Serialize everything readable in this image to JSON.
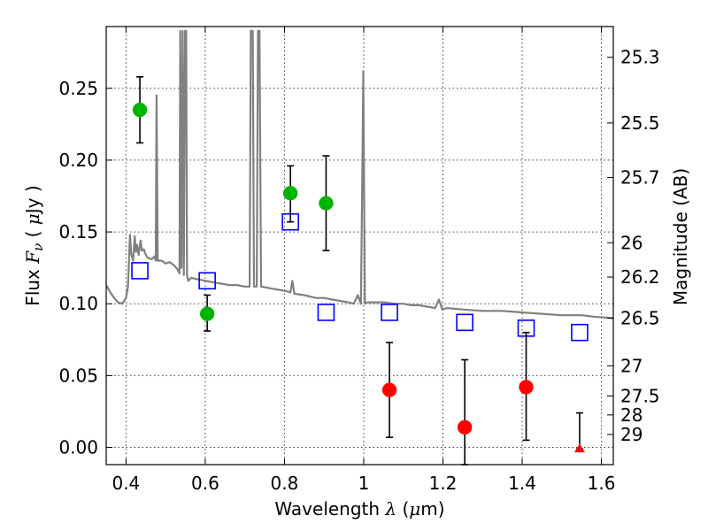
{
  "chart_data": {
    "type": "scatter",
    "title": "",
    "xlabel": {
      "prefix": "Wavelength  ",
      "symbol": "λ",
      "unit_open": " (",
      "unit_mu": "μ",
      "unit_rest": "m)"
    },
    "ylabel": {
      "prefix": "Flux  ",
      "symbol": "F",
      "subscript": "ν",
      "unit_open": "  ( ",
      "unit_mu": "μ",
      "unit_rest": "Jy )"
    },
    "ylabel_right": "Magnitude (AB)",
    "xlim": [
      0.35,
      1.63
    ],
    "ylim": [
      -0.012,
      0.293
    ],
    "grid": true,
    "x_ticks": [
      {
        "value": 0.4,
        "label": "0.4"
      },
      {
        "value": 0.6,
        "label": "0.6"
      },
      {
        "value": 0.8,
        "label": "0.8"
      },
      {
        "value": 1.0,
        "label": "1"
      },
      {
        "value": 1.2,
        "label": "1.2"
      },
      {
        "value": 1.4,
        "label": "1.4"
      },
      {
        "value": 1.6,
        "label": "1.6"
      }
    ],
    "y_ticks": [
      {
        "value": 0.0,
        "label": "0.00"
      },
      {
        "value": 0.05,
        "label": "0.05"
      },
      {
        "value": 0.1,
        "label": "0.10"
      },
      {
        "value": 0.15,
        "label": "0.15"
      },
      {
        "value": 0.2,
        "label": "0.20"
      },
      {
        "value": 0.25,
        "label": "0.25"
      }
    ],
    "right_ticks": [
      {
        "label": "25.3",
        "flux": 0.2716
      },
      {
        "label": "25.5",
        "flux": 0.2259
      },
      {
        "label": "25.7",
        "flux": 0.1879
      },
      {
        "label": "26",
        "flux": 0.1425
      },
      {
        "label": "26.2",
        "flux": 0.1186
      },
      {
        "label": "26.5",
        "flux": 0.09
      },
      {
        "label": "27",
        "flux": 0.0568
      },
      {
        "label": "27.5",
        "flux": 0.0358
      },
      {
        "label": "28",
        "flux": 0.0226
      },
      {
        "label": "29",
        "flux": 0.009
      }
    ],
    "template_spectrum": {
      "color": "#808080",
      "points": [
        [
          0.35,
          0.113
        ],
        [
          0.36,
          0.108
        ],
        [
          0.37,
          0.104
        ],
        [
          0.38,
          0.101
        ],
        [
          0.39,
          0.1
        ],
        [
          0.4,
          0.104
        ],
        [
          0.405,
          0.112
        ],
        [
          0.41,
          0.148
        ],
        [
          0.413,
          0.135
        ],
        [
          0.418,
          0.13
        ],
        [
          0.422,
          0.147
        ],
        [
          0.425,
          0.136
        ],
        [
          0.428,
          0.141
        ],
        [
          0.432,
          0.134
        ],
        [
          0.437,
          0.144
        ],
        [
          0.44,
          0.137
        ],
        [
          0.445,
          0.138
        ],
        [
          0.45,
          0.134
        ],
        [
          0.455,
          0.132
        ],
        [
          0.465,
          0.131
        ],
        [
          0.472,
          0.133
        ],
        [
          0.475,
          0.13
        ],
        [
          0.477,
          0.245
        ],
        [
          0.48,
          0.13
        ],
        [
          0.49,
          0.13
        ],
        [
          0.5,
          0.128
        ],
        [
          0.51,
          0.129
        ],
        [
          0.52,
          0.127
        ],
        [
          0.53,
          0.124
        ],
        [
          0.535,
          0.121
        ],
        [
          0.537,
          0.29
        ],
        [
          0.54,
          0.125
        ],
        [
          0.543,
          0.29
        ],
        [
          0.546,
          0.12
        ],
        [
          0.549,
          0.29
        ],
        [
          0.552,
          0.29
        ],
        [
          0.554,
          0.12
        ],
        [
          0.557,
          0.116
        ],
        [
          0.565,
          0.118
        ],
        [
          0.58,
          0.117
        ],
        [
          0.6,
          0.116
        ],
        [
          0.62,
          0.115
        ],
        [
          0.64,
          0.114
        ],
        [
          0.66,
          0.113
        ],
        [
          0.68,
          0.113
        ],
        [
          0.7,
          0.112
        ],
        [
          0.712,
          0.112
        ],
        [
          0.715,
          0.29
        ],
        [
          0.72,
          0.29
        ],
        [
          0.723,
          0.112
        ],
        [
          0.73,
          0.112
        ],
        [
          0.733,
          0.29
        ],
        [
          0.737,
          0.29
        ],
        [
          0.741,
          0.112
        ],
        [
          0.76,
          0.111
        ],
        [
          0.78,
          0.11
        ],
        [
          0.8,
          0.109
        ],
        [
          0.815,
          0.108
        ],
        [
          0.82,
          0.116
        ],
        [
          0.825,
          0.107
        ],
        [
          0.85,
          0.106
        ],
        [
          0.88,
          0.104
        ],
        [
          0.9,
          0.104
        ],
        [
          0.92,
          0.103
        ],
        [
          0.94,
          0.102
        ],
        [
          0.96,
          0.101
        ],
        [
          0.975,
          0.1
        ],
        [
          0.985,
          0.106
        ],
        [
          0.993,
          0.1
        ],
        [
          0.997,
          0.2
        ],
        [
          0.999,
          0.262
        ],
        [
          1.003,
          0.1
        ],
        [
          1.01,
          0.101
        ],
        [
          1.05,
          0.101
        ],
        [
          1.08,
          0.1
        ],
        [
          1.095,
          0.1
        ],
        [
          1.1,
          0.1
        ],
        [
          1.12,
          0.099
        ],
        [
          1.14,
          0.099
        ],
        [
          1.16,
          0.098
        ],
        [
          1.18,
          0.097
        ],
        [
          1.19,
          0.103
        ],
        [
          1.198,
          0.096
        ],
        [
          1.21,
          0.097
        ],
        [
          1.25,
          0.096
        ],
        [
          1.3,
          0.095
        ],
        [
          1.35,
          0.095
        ],
        [
          1.4,
          0.094
        ],
        [
          1.45,
          0.093
        ],
        [
          1.5,
          0.092
        ],
        [
          1.55,
          0.092
        ],
        [
          1.58,
          0.091
        ],
        [
          1.63,
          0.09
        ]
      ]
    },
    "series": [
      {
        "marker": "open-square",
        "color": "#0000ff",
        "points": [
          {
            "x": 0.435,
            "y": 0.123
          },
          {
            "x": 0.605,
            "y": 0.116
          },
          {
            "x": 0.815,
            "y": 0.157
          },
          {
            "x": 0.905,
            "y": 0.094
          },
          {
            "x": 1.065,
            "y": 0.094
          },
          {
            "x": 1.255,
            "y": 0.087
          },
          {
            "x": 1.41,
            "y": 0.083
          },
          {
            "x": 1.545,
            "y": 0.08
          }
        ]
      },
      {
        "marker": "filled-circle",
        "color": "#00b400",
        "points": [
          {
            "x": 0.435,
            "y": 0.235,
            "err_lo": 0.212,
            "err_hi": 0.258
          },
          {
            "x": 0.605,
            "y": 0.093,
            "err_lo": 0.081,
            "err_hi": 0.106
          },
          {
            "x": 0.815,
            "y": 0.177,
            "err_lo": 0.157,
            "err_hi": 0.196
          },
          {
            "x": 0.905,
            "y": 0.17,
            "err_lo": 0.137,
            "err_hi": 0.203
          }
        ]
      },
      {
        "marker": "filled-circle",
        "color": "#ff0000",
        "points": [
          {
            "x": 1.065,
            "y": 0.04,
            "err_lo": 0.007,
            "err_hi": 0.073
          },
          {
            "x": 1.255,
            "y": 0.014,
            "err_lo": -0.012,
            "err_hi": 0.061
          },
          {
            "x": 1.41,
            "y": 0.042,
            "err_lo": 0.005,
            "err_hi": 0.08
          }
        ]
      },
      {
        "marker": "filled-triangle",
        "color": "#ff0000",
        "points": [
          {
            "x": 1.545,
            "y": -0.001,
            "err_lo": -0.001,
            "err_hi": 0.024
          }
        ]
      }
    ]
  }
}
